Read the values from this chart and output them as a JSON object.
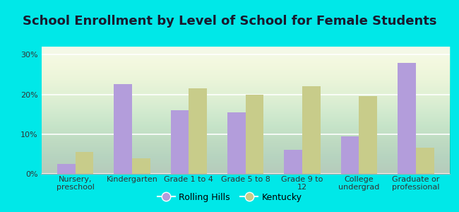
{
  "title": "School Enrollment by Level of School for Female Students",
  "categories": [
    "Nursery,\npreschool",
    "Kindergarten",
    "Grade 1 to 4",
    "Grade 5 to 8",
    "Grade 9 to\n12",
    "College\nundergrad",
    "Graduate or\nprofessional"
  ],
  "rolling_hills": [
    2.5,
    22.5,
    16.0,
    15.5,
    6.0,
    9.5,
    28.0
  ],
  "kentucky": [
    5.5,
    4.0,
    21.5,
    20.0,
    22.0,
    19.5,
    6.5
  ],
  "rolling_hills_color": "#b39ddb",
  "kentucky_color": "#c8cc8a",
  "background_color": "#00e8e8",
  "plot_bg_color": "#f2f7ec",
  "yticks": [
    0,
    10,
    20,
    30
  ],
  "ylim": [
    0,
    32
  ],
  "bar_width": 0.32,
  "legend_rolling_hills": "Rolling Hills",
  "legend_kentucky": "Kentucky",
  "title_fontsize": 13,
  "tick_fontsize": 8,
  "legend_fontsize": 9,
  "title_color": "#1a1a2e"
}
